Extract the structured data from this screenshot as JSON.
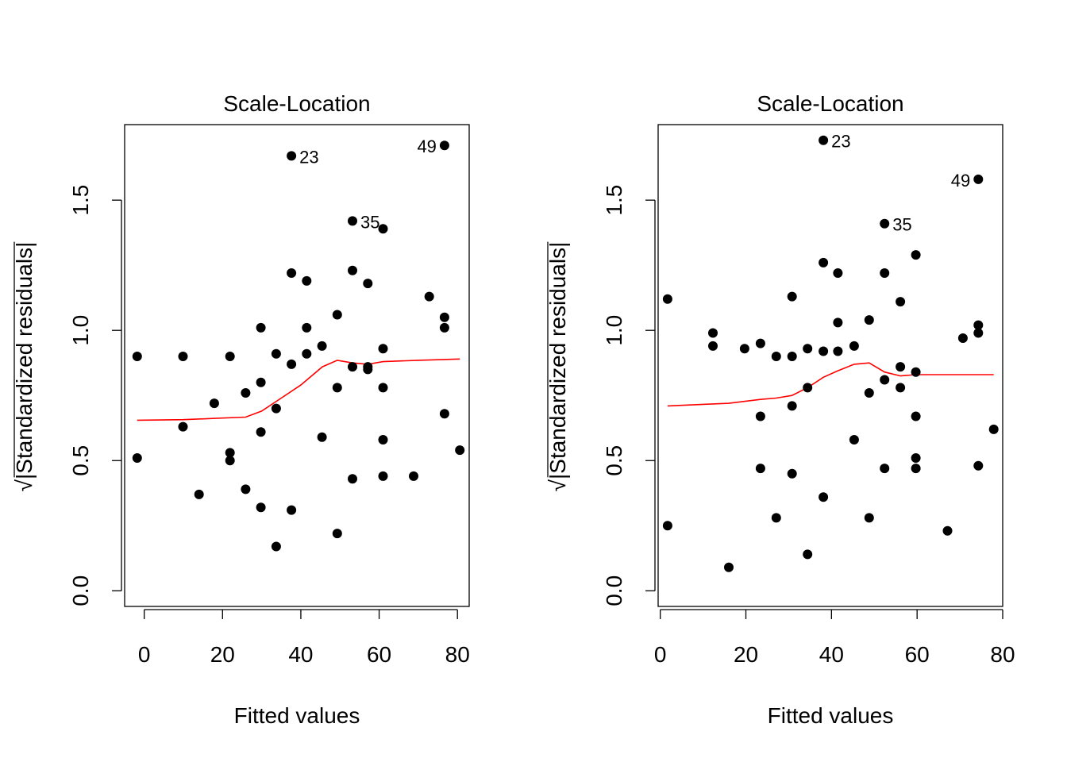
{
  "chart_data": [
    {
      "type": "scatter",
      "title": "Scale-Location",
      "xlabel": "Fitted values",
      "ylabel": "Standardized residuals",
      "ylabel_sqrt_symbol": "√",
      "xlim": [
        -5,
        83
      ],
      "ylim": [
        -0.06,
        1.79
      ],
      "xticks": [
        0,
        20,
        40,
        60,
        80
      ],
      "xtick_labels": [
        "0",
        "20",
        "40",
        "60",
        "80"
      ],
      "yticks": [
        0.0,
        0.5,
        1.0,
        1.5
      ],
      "ytick_labels": [
        "0.0",
        "0.5",
        "1.0",
        "1.5"
      ],
      "grid": false,
      "point_color": "#000000",
      "smooth_color": "#ff0000",
      "points": [
        [
          -1.8,
          0.9
        ],
        [
          -1.8,
          0.51
        ],
        [
          9.9,
          0.9
        ],
        [
          9.9,
          0.63
        ],
        [
          14,
          0.37
        ],
        [
          17.9,
          0.72
        ],
        [
          21.9,
          0.9
        ],
        [
          21.9,
          0.53
        ],
        [
          21.9,
          0.5
        ],
        [
          25.9,
          0.76
        ],
        [
          25.9,
          0.39
        ],
        [
          29.8,
          1.01
        ],
        [
          29.8,
          0.8
        ],
        [
          29.8,
          0.61
        ],
        [
          29.8,
          0.32
        ],
        [
          33.7,
          0.91
        ],
        [
          33.7,
          0.7
        ],
        [
          33.7,
          0.17
        ],
        [
          37.6,
          1.67
        ],
        [
          37.6,
          1.22
        ],
        [
          37.6,
          0.87
        ],
        [
          37.6,
          0.31
        ],
        [
          41.5,
          1.19
        ],
        [
          41.5,
          1.01
        ],
        [
          41.5,
          0.91
        ],
        [
          45.4,
          0.94
        ],
        [
          45.4,
          0.59
        ],
        [
          49.3,
          1.06
        ],
        [
          49.3,
          0.78
        ],
        [
          49.3,
          0.22
        ],
        [
          53.2,
          1.42
        ],
        [
          53.2,
          1.23
        ],
        [
          53.2,
          0.86
        ],
        [
          53.2,
          0.43
        ],
        [
          57.1,
          1.18
        ],
        [
          57.1,
          0.86
        ],
        [
          57.1,
          0.85
        ],
        [
          61,
          1.39
        ],
        [
          61,
          0.93
        ],
        [
          61,
          0.78
        ],
        [
          61,
          0.58
        ],
        [
          61,
          0.44
        ],
        [
          68.8,
          0.44
        ],
        [
          72.8,
          1.13
        ],
        [
          76.7,
          1.71
        ],
        [
          76.7,
          1.05
        ],
        [
          76.7,
          1.01
        ],
        [
          76.7,
          0.68
        ],
        [
          80.6,
          0.54
        ]
      ],
      "smooth": [
        [
          -1.8,
          0.655
        ],
        [
          10,
          0.657
        ],
        [
          18,
          0.662
        ],
        [
          25.9,
          0.667
        ],
        [
          30,
          0.69
        ],
        [
          35,
          0.74
        ],
        [
          40,
          0.79
        ],
        [
          45.5,
          0.86
        ],
        [
          49.3,
          0.885
        ],
        [
          53.2,
          0.875
        ],
        [
          57.1,
          0.87
        ],
        [
          61,
          0.88
        ],
        [
          70,
          0.885
        ],
        [
          80.6,
          0.89
        ]
      ],
      "annotations": [
        {
          "text": "23",
          "x": 37.6,
          "y": 1.67,
          "side": "right"
        },
        {
          "text": "35",
          "x": 53.2,
          "y": 1.42,
          "side": "right"
        },
        {
          "text": "49",
          "x": 76.7,
          "y": 1.71,
          "side": "left"
        }
      ]
    },
    {
      "type": "scatter",
      "title": "Scale-Location",
      "xlabel": "Fitted values",
      "ylabel": "Standardized residuals",
      "ylabel_sqrt_symbol": "√",
      "xlim": [
        -0.5,
        80
      ],
      "ylim": [
        -0.06,
        1.79
      ],
      "xticks": [
        0,
        20,
        40,
        60,
        80
      ],
      "xtick_labels": [
        "0",
        "20",
        "40",
        "60",
        "80"
      ],
      "yticks": [
        0.0,
        0.5,
        1.0,
        1.5
      ],
      "ytick_labels": [
        "0.0",
        "0.5",
        "1.0",
        "1.5"
      ],
      "grid": false,
      "point_color": "#000000",
      "smooth_color": "#ff0000",
      "points": [
        [
          1.7,
          1.12
        ],
        [
          1.7,
          0.25
        ],
        [
          12.3,
          0.99
        ],
        [
          12.3,
          0.94
        ],
        [
          16,
          0.09
        ],
        [
          19.7,
          0.93
        ],
        [
          23.4,
          0.95
        ],
        [
          23.4,
          0.67
        ],
        [
          23.4,
          0.47
        ],
        [
          27.1,
          0.9
        ],
        [
          27.1,
          0.28
        ],
        [
          30.8,
          1.13
        ],
        [
          30.8,
          0.9
        ],
        [
          30.8,
          0.71
        ],
        [
          30.8,
          0.45
        ],
        [
          34.4,
          0.93
        ],
        [
          34.4,
          0.78
        ],
        [
          34.4,
          0.14
        ],
        [
          38.1,
          1.73
        ],
        [
          38.1,
          1.26
        ],
        [
          38.1,
          0.92
        ],
        [
          38.1,
          0.36
        ],
        [
          41.5,
          1.22
        ],
        [
          41.5,
          1.03
        ],
        [
          41.5,
          0.92
        ],
        [
          45.3,
          0.94
        ],
        [
          45.3,
          0.58
        ],
        [
          48.8,
          1.04
        ],
        [
          48.8,
          0.76
        ],
        [
          48.8,
          0.28
        ],
        [
          52.4,
          1.41
        ],
        [
          52.4,
          1.22
        ],
        [
          52.4,
          0.81
        ],
        [
          52.4,
          0.47
        ],
        [
          56.1,
          1.11
        ],
        [
          56.1,
          0.86
        ],
        [
          56.1,
          0.78
        ],
        [
          59.7,
          1.29
        ],
        [
          59.7,
          0.84
        ],
        [
          59.7,
          0.67
        ],
        [
          59.7,
          0.51
        ],
        [
          59.7,
          0.47
        ],
        [
          67.1,
          0.23
        ],
        [
          70.7,
          0.97
        ],
        [
          74.3,
          1.58
        ],
        [
          74.3,
          1.02
        ],
        [
          74.3,
          0.99
        ],
        [
          74.3,
          0.48
        ],
        [
          77.9,
          0.62
        ]
      ],
      "smooth": [
        [
          1.7,
          0.71
        ],
        [
          10,
          0.716
        ],
        [
          16,
          0.72
        ],
        [
          23.4,
          0.735
        ],
        [
          27.1,
          0.74
        ],
        [
          30.8,
          0.75
        ],
        [
          34.4,
          0.78
        ],
        [
          38.1,
          0.82
        ],
        [
          41.5,
          0.845
        ],
        [
          45.3,
          0.87
        ],
        [
          48.8,
          0.875
        ],
        [
          52.4,
          0.84
        ],
        [
          56.1,
          0.825
        ],
        [
          59.7,
          0.83
        ],
        [
          67.1,
          0.83
        ],
        [
          77.9,
          0.83
        ]
      ],
      "annotations": [
        {
          "text": "23",
          "x": 38.1,
          "y": 1.73,
          "side": "right"
        },
        {
          "text": "35",
          "x": 52.4,
          "y": 1.41,
          "side": "right"
        },
        {
          "text": "49",
          "x": 74.3,
          "y": 1.58,
          "side": "left"
        }
      ]
    }
  ]
}
